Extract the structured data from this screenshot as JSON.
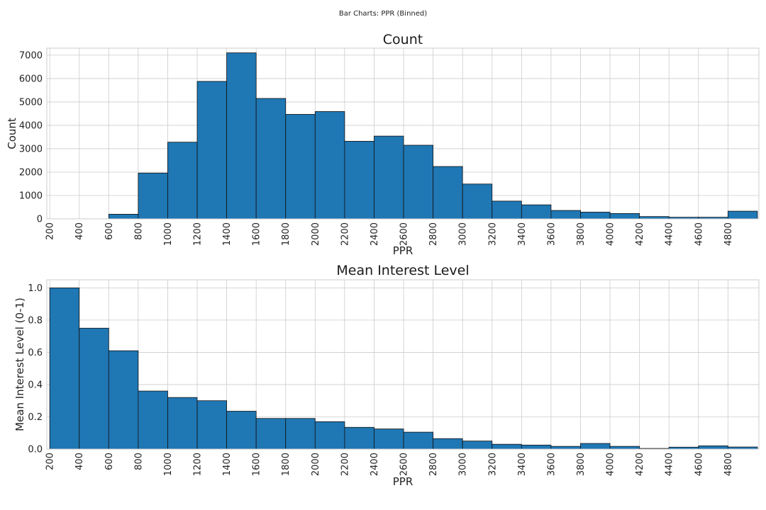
{
  "suptitle": "Bar Charts: PPR (Binned)",
  "bar_color": "#1f77b4",
  "edge_color": "#111111",
  "grid_color": "#cccccc",
  "chart_data": [
    {
      "type": "bar",
      "title": "Count",
      "xlabel": "PPR",
      "ylabel": "Count",
      "grid": true,
      "bin_width": 200,
      "xlim": [
        180,
        5010
      ],
      "ylim": [
        0,
        7300
      ],
      "x_ticks": [
        200,
        400,
        600,
        800,
        1000,
        1200,
        1400,
        1600,
        1800,
        2000,
        2200,
        2400,
        2600,
        2800,
        3000,
        3200,
        3400,
        3600,
        3800,
        4000,
        4200,
        4400,
        4600,
        4800
      ],
      "y_ticks": [
        0,
        1000,
        2000,
        3000,
        4000,
        5000,
        6000,
        7000
      ],
      "bins": [
        200,
        400,
        600,
        800,
        1000,
        1200,
        1400,
        1600,
        1800,
        2000,
        2200,
        2400,
        2600,
        2800,
        3000,
        3200,
        3400,
        3600,
        3800,
        4000,
        4200,
        4400,
        4600,
        4800
      ],
      "values": [
        0,
        0,
        200,
        1960,
        3280,
        5880,
        7100,
        5150,
        4470,
        4590,
        3320,
        3540,
        3150,
        2240,
        1490,
        760,
        600,
        360,
        290,
        230,
        100,
        70,
        70,
        330
      ]
    },
    {
      "type": "bar",
      "title": "Mean Interest Level",
      "xlabel": "PPR",
      "ylabel": "Mean Interest Level (0-1)",
      "grid": true,
      "bin_width": 200,
      "xlim": [
        180,
        5010
      ],
      "ylim": [
        0,
        1.05
      ],
      "x_ticks": [
        200,
        400,
        600,
        800,
        1000,
        1200,
        1400,
        1600,
        1800,
        2000,
        2200,
        2400,
        2600,
        2800,
        3000,
        3200,
        3400,
        3600,
        3800,
        4000,
        4200,
        4400,
        4600,
        4800
      ],
      "y_ticks": [
        0.0,
        0.2,
        0.4,
        0.6,
        0.8,
        1.0
      ],
      "bins": [
        200,
        400,
        600,
        800,
        1000,
        1200,
        1400,
        1600,
        1800,
        2000,
        2200,
        2400,
        2600,
        2800,
        3000,
        3200,
        3400,
        3600,
        3800,
        4000,
        4200,
        4400,
        4600,
        4800
      ],
      "values": [
        1.0,
        0.75,
        0.61,
        0.36,
        0.32,
        0.3,
        0.235,
        0.19,
        0.19,
        0.17,
        0.135,
        0.125,
        0.105,
        0.065,
        0.05,
        0.03,
        0.025,
        0.017,
        0.035,
        0.017,
        0.004,
        0.012,
        0.02,
        0.013
      ]
    }
  ]
}
